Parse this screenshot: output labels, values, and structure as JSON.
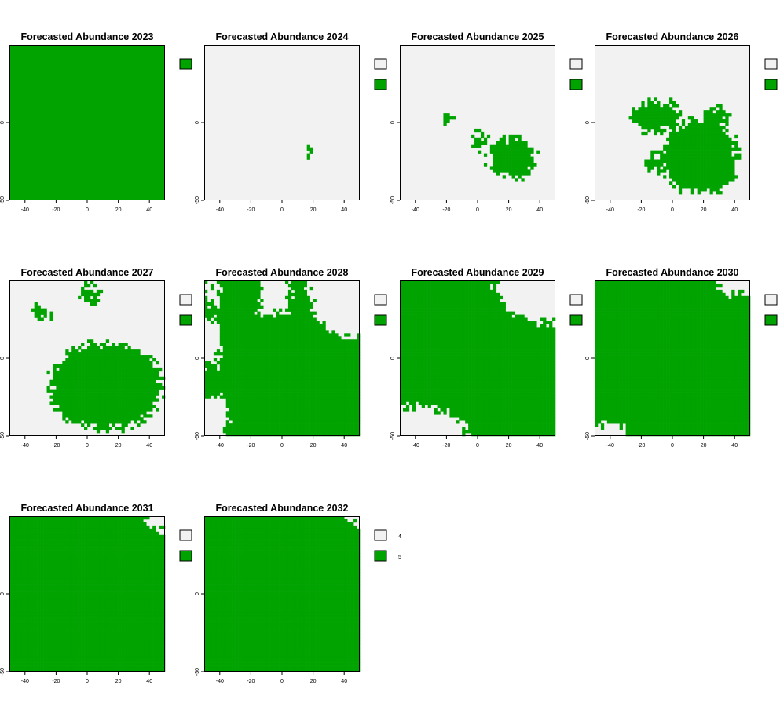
{
  "figure": {
    "background": "#ffffff"
  },
  "colors": {
    "present": "#00a300",
    "absent": "#f2f2f2",
    "frame": "#000000"
  },
  "chart_data": [
    {
      "type": "heatmap",
      "title": "Forecasted Abundance 2023",
      "xlim": [
        -50,
        50
      ],
      "ylim": [
        -50,
        50
      ],
      "x_ticks": [
        -40,
        -20,
        0,
        20,
        40
      ],
      "y_ticks": [
        -50,
        0
      ],
      "classes": [
        {
          "value": 5,
          "color": "#00a300"
        }
      ],
      "legend_labels": [],
      "coverage": "all cells value 5"
    },
    {
      "type": "heatmap",
      "title": "Forecasted Abundance 2024",
      "xlim": [
        -50,
        50
      ],
      "ylim": [
        -50,
        50
      ],
      "x_ticks": [
        -40,
        -20,
        0,
        20,
        40
      ],
      "y_ticks": [
        -50,
        0
      ],
      "classes": [
        {
          "value": 4,
          "color": "#f2f2f2"
        },
        {
          "value": 5,
          "color": "#00a300"
        }
      ],
      "legend_labels": [],
      "coverage": "single small value-5 patch near (19, -19); rest value 4"
    },
    {
      "type": "heatmap",
      "title": "Forecasted Abundance 2025",
      "xlim": [
        -50,
        50
      ],
      "ylim": [
        -50,
        50
      ],
      "x_ticks": [
        -40,
        -20,
        0,
        20,
        40
      ],
      "y_ticks": [
        -50,
        0
      ],
      "classes": [
        {
          "value": 4,
          "color": "#f2f2f2"
        },
        {
          "value": 5,
          "color": "#00a300"
        }
      ],
      "legend_labels": [],
      "coverage": "value-5 cluster around (20, -22) and small patches near (-19, 2) and (1, -12)"
    },
    {
      "type": "heatmap",
      "title": "Forecasted Abundance 2026",
      "xlim": [
        -50,
        50
      ],
      "ylim": [
        -50,
        50
      ],
      "x_ticks": [
        -40,
        -20,
        0,
        20,
        40
      ],
      "y_ticks": [
        -50,
        0
      ],
      "classes": [
        {
          "value": 4,
          "color": "#f2f2f2"
        },
        {
          "value": 5,
          "color": "#00a300"
        }
      ],
      "legend_labels": [],
      "coverage": "large value-5 blob spanning x -25..42, y -46..10"
    },
    {
      "type": "heatmap",
      "title": "Forecasted Abundance 2027",
      "xlim": [
        -50,
        50
      ],
      "ylim": [
        -50,
        50
      ],
      "x_ticks": [
        -40,
        -20,
        0,
        20,
        40
      ],
      "y_ticks": [
        -50,
        0
      ],
      "classes": [
        {
          "value": 4,
          "color": "#f2f2f2"
        },
        {
          "value": 5,
          "color": "#00a300"
        }
      ],
      "legend_labels": [],
      "coverage": "value-5 covers most of the lower-central area; value 4 near edges and top"
    },
    {
      "type": "heatmap",
      "title": "Forecasted Abundance 2028",
      "xlim": [
        -50,
        50
      ],
      "ylim": [
        -50,
        50
      ],
      "x_ticks": [
        -40,
        -20,
        0,
        20,
        40
      ],
      "y_ticks": [
        -50,
        0
      ],
      "classes": [
        {
          "value": 4,
          "color": "#f2f2f2"
        },
        {
          "value": 5,
          "color": "#00a300"
        }
      ],
      "legend_labels": [],
      "coverage": "value-5 over most of the grid; value 4 in upper-right corner, left edge and lower-left"
    },
    {
      "type": "heatmap",
      "title": "Forecasted Abundance 2029",
      "xlim": [
        -50,
        50
      ],
      "ylim": [
        -50,
        50
      ],
      "x_ticks": [
        -40,
        -20,
        0,
        20,
        40
      ],
      "y_ticks": [
        -50,
        0
      ],
      "classes": [
        {
          "value": 4,
          "color": "#f2f2f2"
        },
        {
          "value": 5,
          "color": "#00a300"
        }
      ],
      "legend_labels": [],
      "coverage": "value-5 nearly everywhere; value 4 in upper-right and lower-left corners"
    },
    {
      "type": "heatmap",
      "title": "Forecasted Abundance 2030",
      "xlim": [
        -50,
        50
      ],
      "ylim": [
        -50,
        50
      ],
      "x_ticks": [
        -40,
        -20,
        0,
        20,
        40
      ],
      "y_ticks": [
        -50,
        0
      ],
      "classes": [
        {
          "value": 4,
          "color": "#f2f2f2"
        },
        {
          "value": 5,
          "color": "#00a300"
        }
      ],
      "legend_labels": [],
      "coverage": "value-5 nearly everywhere; small value-4 areas at upper-right and bottom-left"
    },
    {
      "type": "heatmap",
      "title": "Forecasted Abundance 2031",
      "xlim": [
        -50,
        50
      ],
      "ylim": [
        -50,
        50
      ],
      "x_ticks": [
        -40,
        -20,
        0,
        20,
        40
      ],
      "y_ticks": [
        -50,
        0
      ],
      "classes": [
        {
          "value": 4,
          "color": "#f2f2f2"
        },
        {
          "value": 5,
          "color": "#00a300"
        }
      ],
      "legend_labels": [],
      "coverage": "value-5 everywhere except small value-4 patch in top-right corner"
    },
    {
      "type": "heatmap",
      "title": "Forecasted Abundance 2032",
      "xlim": [
        -50,
        50
      ],
      "ylim": [
        -50,
        50
      ],
      "x_ticks": [
        -40,
        -20,
        0,
        20,
        40
      ],
      "y_ticks": [
        -50,
        0
      ],
      "classes": [
        {
          "value": 4,
          "color": "#f2f2f2"
        },
        {
          "value": 5,
          "color": "#00a300"
        }
      ],
      "legend_labels": [
        "4",
        "5"
      ],
      "coverage": "value-5 everywhere except tiny value-4 patch in top-right corner"
    }
  ]
}
